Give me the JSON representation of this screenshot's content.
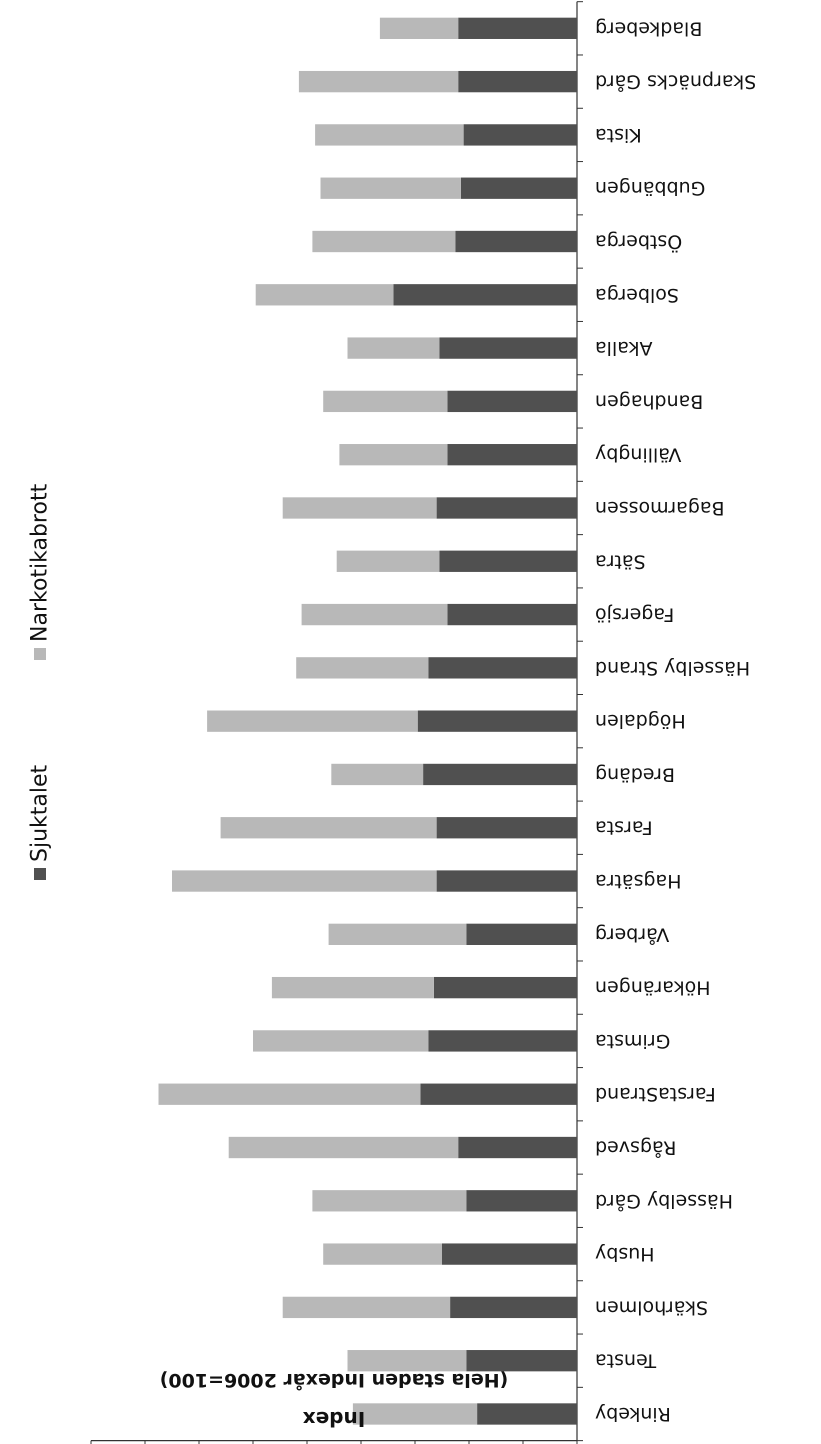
{
  "chart_data": {
    "type": "bar",
    "stacked": true,
    "orientation": "horizontal-rendered-rotated",
    "ylabel": "Index",
    "ylabel_sub": "(Hela staden Indexår 2006=100)",
    "ylim": [
      0,
      180
    ],
    "ticks": [
      0,
      20,
      40,
      60,
      80,
      100,
      120,
      140,
      160,
      180
    ],
    "legend_position": "right",
    "categories": [
      "Rinkeby",
      "Tensta",
      "Skärholmen",
      "Husby",
      "Hässelby Gård",
      "Rågsved",
      "FarstaStrand",
      "Grimsta",
      "Hökarängen",
      "Vårberg",
      "Hagsätra",
      "Farsta",
      "Bredäng",
      "Högdalen",
      "Hässelby Strand",
      "Fagersjö",
      "Sätra",
      "Bagarmossen",
      "Vällingby",
      "Bandhagen",
      "Akalla",
      "Solberga",
      "Östberga",
      "Gubbängen",
      "Kista",
      "Skarpnäcks Gård",
      "Bladkeberg"
    ],
    "series": [
      {
        "name": "Sjuktalet",
        "color": "#505050",
        "values": [
          37,
          41,
          47,
          50,
          41,
          44,
          58,
          55,
          53,
          41,
          52,
          52,
          57,
          59,
          55,
          48,
          51,
          52,
          48,
          48,
          51,
          68,
          45,
          43,
          42,
          44,
          44
        ]
      },
      {
        "name": "Narkotikabrott",
        "color": "#b8b8b8",
        "values": [
          46,
          44,
          62,
          44,
          57,
          85,
          97,
          65,
          60,
          51,
          98,
          80,
          34,
          78,
          49,
          54,
          38,
          57,
          40,
          46,
          34,
          51,
          53,
          52,
          55,
          59,
          29
        ]
      }
    ]
  }
}
